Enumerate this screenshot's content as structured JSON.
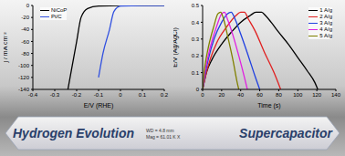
{
  "chart_data": [
    {
      "type": "line",
      "xlabel": "E/V (RHE)",
      "ylabel": "j / mA cm⁻²",
      "xlim": [
        -0.4,
        0.2
      ],
      "xticks": [
        -0.4,
        -0.3,
        -0.2,
        -0.1,
        0,
        0.1,
        0.2
      ],
      "ylim": [
        -140,
        0
      ],
      "yticks": [
        -140,
        -120,
        -100,
        -80,
        -60,
        -40,
        -20,
        0
      ],
      "legend": "upper left",
      "grid": false,
      "series": [
        {
          "name": "NiCoP",
          "color": "#000000",
          "x": [
            0.2,
            0.1,
            0,
            -0.1,
            -0.15,
            -0.18,
            -0.2,
            -0.22,
            -0.24
          ],
          "values": [
            0,
            0,
            0,
            -1,
            -5,
            -20,
            -60,
            -100,
            -140
          ]
        },
        {
          "name": "Pt/C",
          "color": "#3050e0",
          "x": [
            0.2,
            0.1,
            0,
            -0.03,
            -0.05,
            -0.08,
            -0.1
          ],
          "values": [
            0,
            0,
            -1,
            -10,
            -40,
            -80,
            -120
          ]
        }
      ]
    },
    {
      "type": "line",
      "xlabel": "Time (s)",
      "ylabel": "E/V (Ag/AgCl)",
      "xlim": [
        0,
        140
      ],
      "xticks": [
        0,
        20,
        40,
        60,
        80,
        100,
        120,
        140
      ],
      "ylim": [
        0,
        0.5
      ],
      "yticks": [
        0,
        0.1,
        0.2,
        0.3,
        0.4,
        0.5
      ],
      "legend": "upper right",
      "grid": false,
      "series": [
        {
          "name": "1 A/g",
          "color": "#000000",
          "x": [
            0,
            4,
            10,
            20,
            30,
            40,
            50,
            56,
            62,
            66,
            72,
            80,
            90,
            100,
            110,
            118,
            121
          ],
          "values": [
            0,
            0.1,
            0.18,
            0.27,
            0.34,
            0.4,
            0.44,
            0.46,
            0.46,
            0.44,
            0.4,
            0.34,
            0.27,
            0.19,
            0.11,
            0.04,
            0
          ]
        },
        {
          "name": "2 A/g",
          "color": "#e02020",
          "x": [
            0,
            4,
            8,
            15,
            25,
            35,
            40,
            44,
            48,
            55,
            65,
            75,
            82
          ],
          "values": [
            0,
            0.1,
            0.18,
            0.28,
            0.37,
            0.44,
            0.46,
            0.46,
            0.42,
            0.35,
            0.22,
            0.1,
            0
          ]
        },
        {
          "name": "3 A/g",
          "color": "#2040e0",
          "x": [
            0,
            3,
            6,
            12,
            20,
            26,
            30,
            34,
            40,
            48,
            55,
            60
          ],
          "values": [
            0,
            0.1,
            0.18,
            0.3,
            0.4,
            0.45,
            0.46,
            0.42,
            0.33,
            0.2,
            0.08,
            0
          ]
        },
        {
          "name": "4 A/g",
          "color": "#e020e0",
          "x": [
            0,
            3,
            8,
            15,
            20,
            23,
            26,
            32,
            38,
            44,
            47
          ],
          "values": [
            0,
            0.12,
            0.25,
            0.38,
            0.45,
            0.46,
            0.42,
            0.32,
            0.2,
            0.07,
            0
          ]
        },
        {
          "name": "5 A/g",
          "color": "#808000",
          "x": [
            0,
            2,
            6,
            12,
            16,
            19,
            22,
            27,
            32,
            36,
            38
          ],
          "values": [
            0,
            0.12,
            0.25,
            0.38,
            0.45,
            0.46,
            0.42,
            0.3,
            0.17,
            0.05,
            0
          ]
        }
      ]
    }
  ],
  "banner": [
    "Hydrogen Evolution",
    "Supercapacitor"
  ],
  "sem_labels": [
    "WD = 4.8 mm",
    "Mag = 61.01 K X"
  ]
}
